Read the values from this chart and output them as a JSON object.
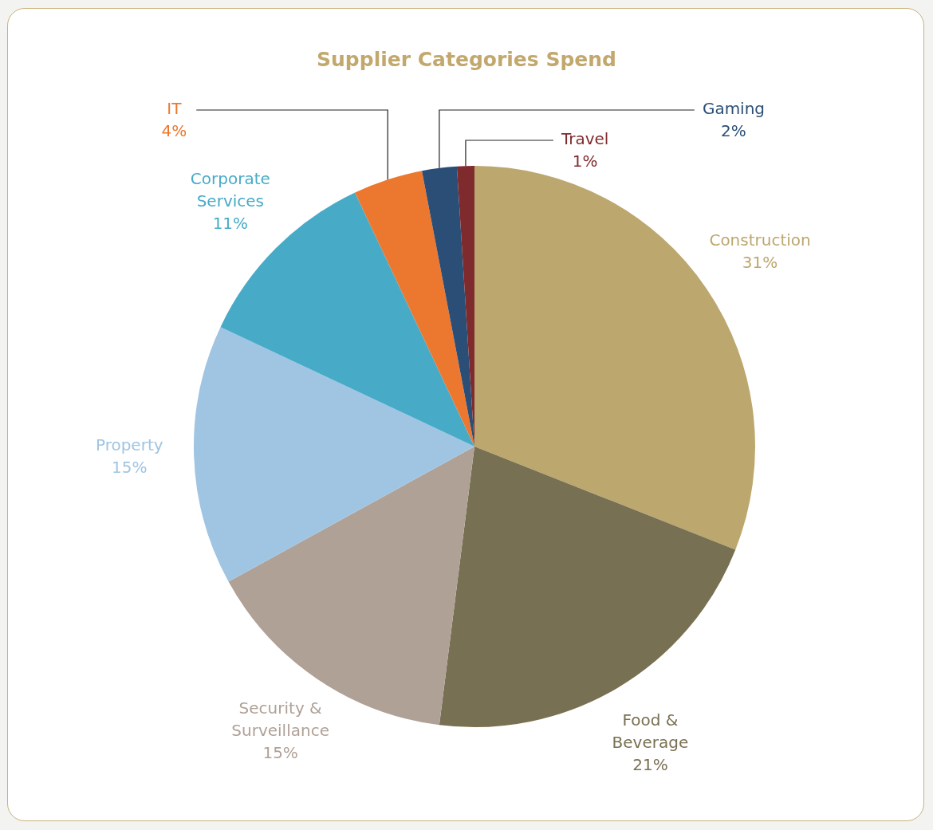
{
  "chart_data": {
    "type": "pie",
    "title": "Supplier Categories Spend",
    "categories": [
      "Construction",
      "Food & Beverage",
      "Security & Surveillance",
      "Property",
      "Corporate Services",
      "IT",
      "Gaming",
      "Travel"
    ],
    "values": [
      31,
      21,
      15,
      15,
      11,
      4,
      2,
      1
    ],
    "value_labels": [
      "31%",
      "21%",
      "15%",
      "15%",
      "11%",
      "4%",
      "2%",
      "1%"
    ],
    "colors": [
      "#bca76f",
      "#787052",
      "#b0a197",
      "#a0c5e2",
      "#47abc7",
      "#ec772f",
      "#2b4e76",
      "#7f2b2e"
    ],
    "legend": false
  }
}
